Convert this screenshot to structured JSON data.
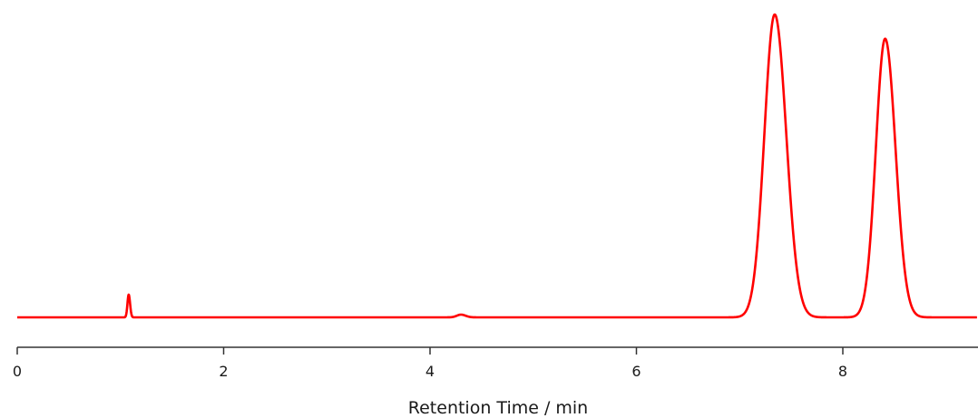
{
  "chart_data": {
    "type": "line",
    "xlabel": "Retention Time / min",
    "ylabel": "",
    "xlim": [
      0,
      9.3
    ],
    "ylim": [
      0,
      1
    ],
    "x_ticks": [
      0,
      2,
      4,
      6,
      8
    ],
    "y_axis_visible": false,
    "grid": false,
    "legend": "none",
    "line_color": "#ff0000",
    "baseline": 0.005,
    "peaks": [
      {
        "time": 1.08,
        "height": 0.075,
        "width": 0.012
      },
      {
        "time": 4.3,
        "height": 0.009,
        "width": 0.04
      },
      {
        "time": 7.34,
        "height": 1.0,
        "width": 0.1
      },
      {
        "time": 8.41,
        "height": 0.92,
        "width": 0.09
      }
    ]
  }
}
